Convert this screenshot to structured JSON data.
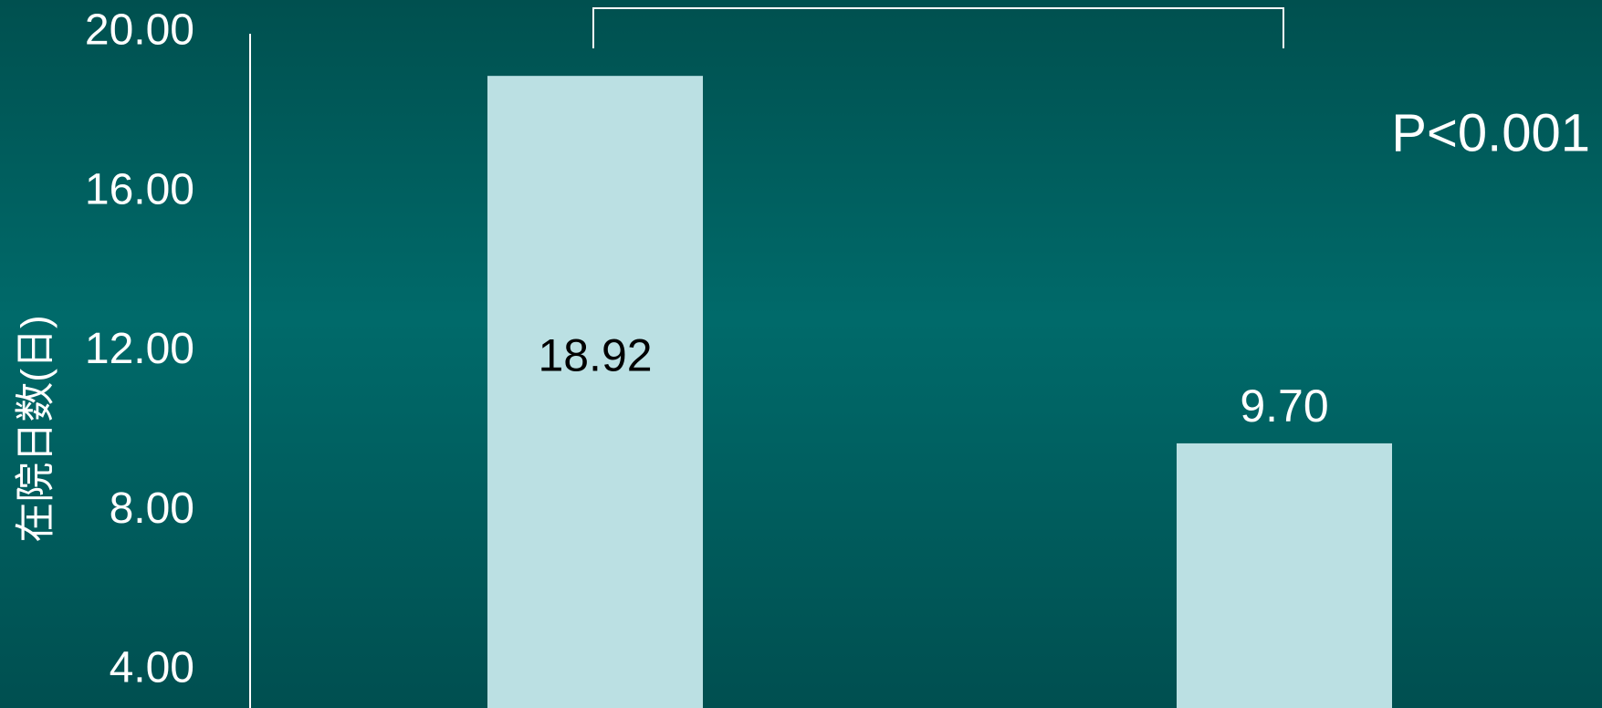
{
  "chart_data": {
    "type": "bar",
    "y_label": "在院日数(日)",
    "annotation": "P<0.001",
    "categories": [
      null,
      null
    ],
    "values": [
      18.92,
      9.7
    ],
    "value_labels": [
      "18.92",
      "9.70"
    ],
    "color": "#bbe0e3",
    "ylim": [
      3.06,
      20
    ],
    "yticks": [
      {
        "value": 4,
        "label": "4.00"
      },
      {
        "value": 8,
        "label": "8.00"
      },
      {
        "value": 12,
        "label": "12.00"
      },
      {
        "value": 16,
        "label": "16.00"
      },
      {
        "value": 20,
        "label": "20.00"
      }
    ],
    "grid": false
  }
}
